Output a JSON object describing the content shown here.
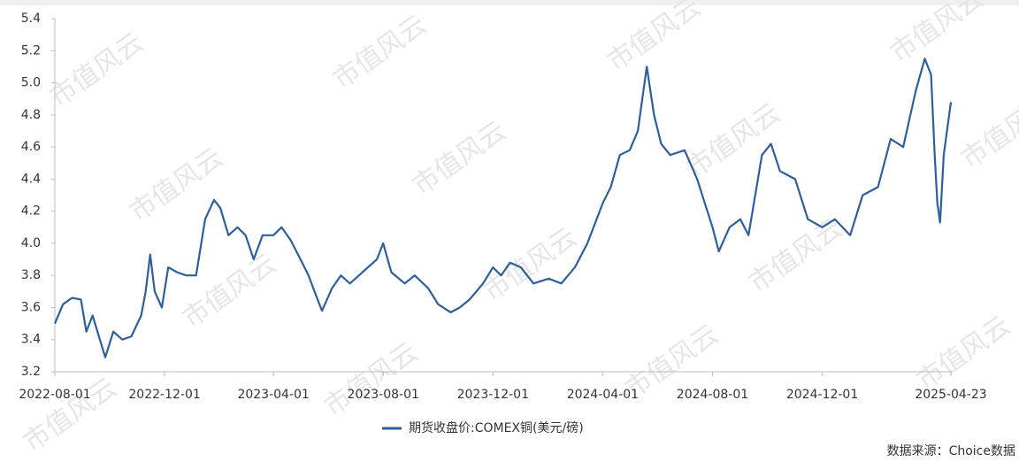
{
  "chart_data": {
    "type": "line",
    "x": [
      "2022-08-01",
      "2022-08-10",
      "2022-08-20",
      "2022-08-30",
      "2022-09-05",
      "2022-09-12",
      "2022-09-20",
      "2022-09-26",
      "2022-10-05",
      "2022-10-15",
      "2022-10-25",
      "2022-11-05",
      "2022-11-10",
      "2022-11-15",
      "2022-11-20",
      "2022-11-28",
      "2022-12-05",
      "2022-12-15",
      "2022-12-25",
      "2023-01-05",
      "2023-01-15",
      "2023-01-25",
      "2023-02-01",
      "2023-02-10",
      "2023-02-20",
      "2023-03-01",
      "2023-03-10",
      "2023-03-20",
      "2023-04-01",
      "2023-04-10",
      "2023-04-20",
      "2023-05-01",
      "2023-05-10",
      "2023-05-20",
      "2023-05-25",
      "2023-06-05",
      "2023-06-15",
      "2023-06-25",
      "2023-07-05",
      "2023-07-15",
      "2023-07-25",
      "2023-08-01",
      "2023-08-10",
      "2023-08-25",
      "2023-09-05",
      "2023-09-20",
      "2023-10-01",
      "2023-10-15",
      "2023-10-25",
      "2023-11-05",
      "2023-11-20",
      "2023-12-01",
      "2023-12-10",
      "2023-12-20",
      "2024-01-01",
      "2024-01-15",
      "2024-02-01",
      "2024-02-15",
      "2024-03-01",
      "2024-03-15",
      "2024-04-01",
      "2024-04-10",
      "2024-04-20",
      "2024-05-01",
      "2024-05-10",
      "2024-05-20",
      "2024-05-28",
      "2024-06-05",
      "2024-06-15",
      "2024-07-01",
      "2024-07-15",
      "2024-08-01",
      "2024-08-08",
      "2024-08-20",
      "2024-09-01",
      "2024-09-10",
      "2024-09-25",
      "2024-10-05",
      "2024-10-15",
      "2024-11-01",
      "2024-11-15",
      "2024-12-01",
      "2024-12-15",
      "2025-01-01",
      "2025-01-15",
      "2025-02-01",
      "2025-02-15",
      "2025-03-01",
      "2025-03-15",
      "2025-03-25",
      "2025-04-01",
      "2025-04-05",
      "2025-04-08",
      "2025-04-11",
      "2025-04-15",
      "2025-04-23"
    ],
    "series": [
      {
        "name": "期货收盘价:COMEX铜(美元/磅)",
        "color": "#2f5f98",
        "values": [
          3.5,
          3.62,
          3.66,
          3.65,
          3.45,
          3.55,
          3.4,
          3.29,
          3.45,
          3.4,
          3.42,
          3.55,
          3.7,
          3.93,
          3.7,
          3.6,
          3.85,
          3.82,
          3.8,
          3.8,
          4.15,
          4.27,
          4.22,
          4.05,
          4.1,
          4.05,
          3.9,
          4.05,
          4.05,
          4.1,
          4.02,
          3.9,
          3.8,
          3.65,
          3.58,
          3.72,
          3.8,
          3.75,
          3.8,
          3.85,
          3.9,
          4.0,
          3.82,
          3.75,
          3.8,
          3.72,
          3.62,
          3.57,
          3.6,
          3.65,
          3.75,
          3.85,
          3.8,
          3.88,
          3.85,
          3.75,
          3.78,
          3.75,
          3.85,
          4.0,
          4.25,
          4.35,
          4.55,
          4.58,
          4.7,
          5.1,
          4.8,
          4.62,
          4.55,
          4.58,
          4.4,
          4.1,
          3.95,
          4.1,
          4.15,
          4.05,
          4.55,
          4.62,
          4.45,
          4.4,
          4.15,
          4.1,
          4.15,
          4.05,
          4.3,
          4.35,
          4.65,
          4.6,
          4.95,
          5.15,
          5.05,
          4.55,
          4.25,
          4.13,
          4.55,
          4.88
        ]
      }
    ],
    "xlim": [
      "2022-08-01",
      "2025-04-23"
    ],
    "xticks": [
      "2022-08-01",
      "2022-12-01",
      "2023-04-01",
      "2023-08-01",
      "2023-12-01",
      "2024-04-01",
      "2024-08-01",
      "2024-12-01",
      "2025-04-23"
    ],
    "ylim": [
      3.2,
      5.4
    ],
    "yticks": [
      3.2,
      3.4,
      3.6,
      3.8,
      {
        "value": 4,
        "label": "4.0"
      },
      4.2,
      4.4,
      4.6,
      4.8,
      {
        "value": 5,
        "label": "5.0"
      },
      5.2,
      5.4
    ],
    "legend": "bottom",
    "source": "数据来源：Choice数据",
    "watermark": "市值风云"
  }
}
